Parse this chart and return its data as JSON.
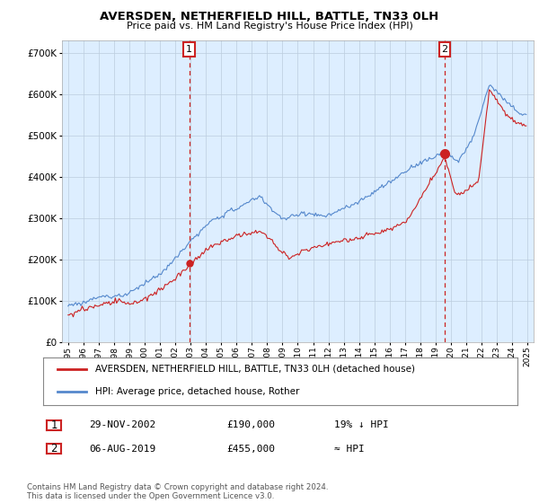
{
  "title": "AVERSDEN, NETHERFIELD HILL, BATTLE, TN33 0LH",
  "subtitle": "Price paid vs. HM Land Registry's House Price Index (HPI)",
  "legend_label1": "AVERSDEN, NETHERFIELD HILL, BATTLE, TN33 0LH (detached house)",
  "legend_label2": "HPI: Average price, detached house, Rother",
  "annotation1_date": "29-NOV-2002",
  "annotation1_price": "£190,000",
  "annotation1_hpi": "19% ↓ HPI",
  "annotation2_date": "06-AUG-2019",
  "annotation2_price": "£455,000",
  "annotation2_hpi": "≈ HPI",
  "footnote": "Contains HM Land Registry data © Crown copyright and database right 2024.\nThis data is licensed under the Open Government Licence v3.0.",
  "ylim": [
    0,
    730000
  ],
  "yticks": [
    0,
    100000,
    200000,
    300000,
    400000,
    500000,
    600000,
    700000
  ],
  "background_color": "#ffffff",
  "chart_bg_color": "#ddeeff",
  "grid_color": "#bbccdd",
  "hpi_line_color": "#5588cc",
  "price_line_color": "#cc2222",
  "vline_color": "#cc2222",
  "annotation_box_color": "#cc2222",
  "year_start": 1995,
  "year_end": 2025,
  "purchase1_year": 2002.917,
  "purchase1_value": 190000,
  "purchase2_year": 2019.583,
  "purchase2_value": 455000
}
